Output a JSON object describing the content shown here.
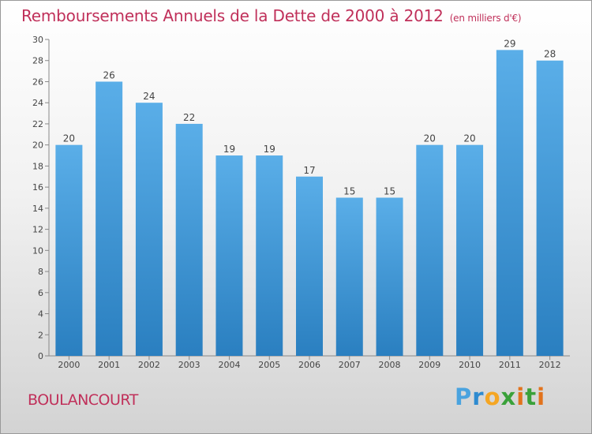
{
  "header": {
    "title": "Remboursements Annuels de la Dette de 2000 à 2012",
    "unit": "(en milliers d'€)"
  },
  "footer": {
    "commune": "BOULANCOURT",
    "logo_text": "Proxiti",
    "logo_letters": [
      "P",
      "r",
      "o",
      "x",
      "i",
      "t",
      "i"
    ]
  },
  "colors": {
    "bar_top": "#5aaee8",
    "bar_bottom": "#2a7fc0",
    "title": "#c0305a"
  },
  "chart_data": {
    "type": "bar",
    "title": "Remboursements Annuels de la Dette de 2000 à 2012",
    "xlabel": "",
    "ylabel": "",
    "categories": [
      "2000",
      "2001",
      "2002",
      "2003",
      "2004",
      "2005",
      "2006",
      "2007",
      "2008",
      "2009",
      "2010",
      "2011",
      "2012"
    ],
    "values": [
      20,
      26,
      24,
      22,
      19,
      19,
      17,
      15,
      15,
      20,
      20,
      29,
      28
    ],
    "ylim": [
      0,
      30
    ],
    "yticks": [
      0,
      2,
      4,
      6,
      8,
      10,
      12,
      14,
      16,
      18,
      20,
      22,
      24,
      26,
      28,
      30
    ],
    "grid": false
  }
}
